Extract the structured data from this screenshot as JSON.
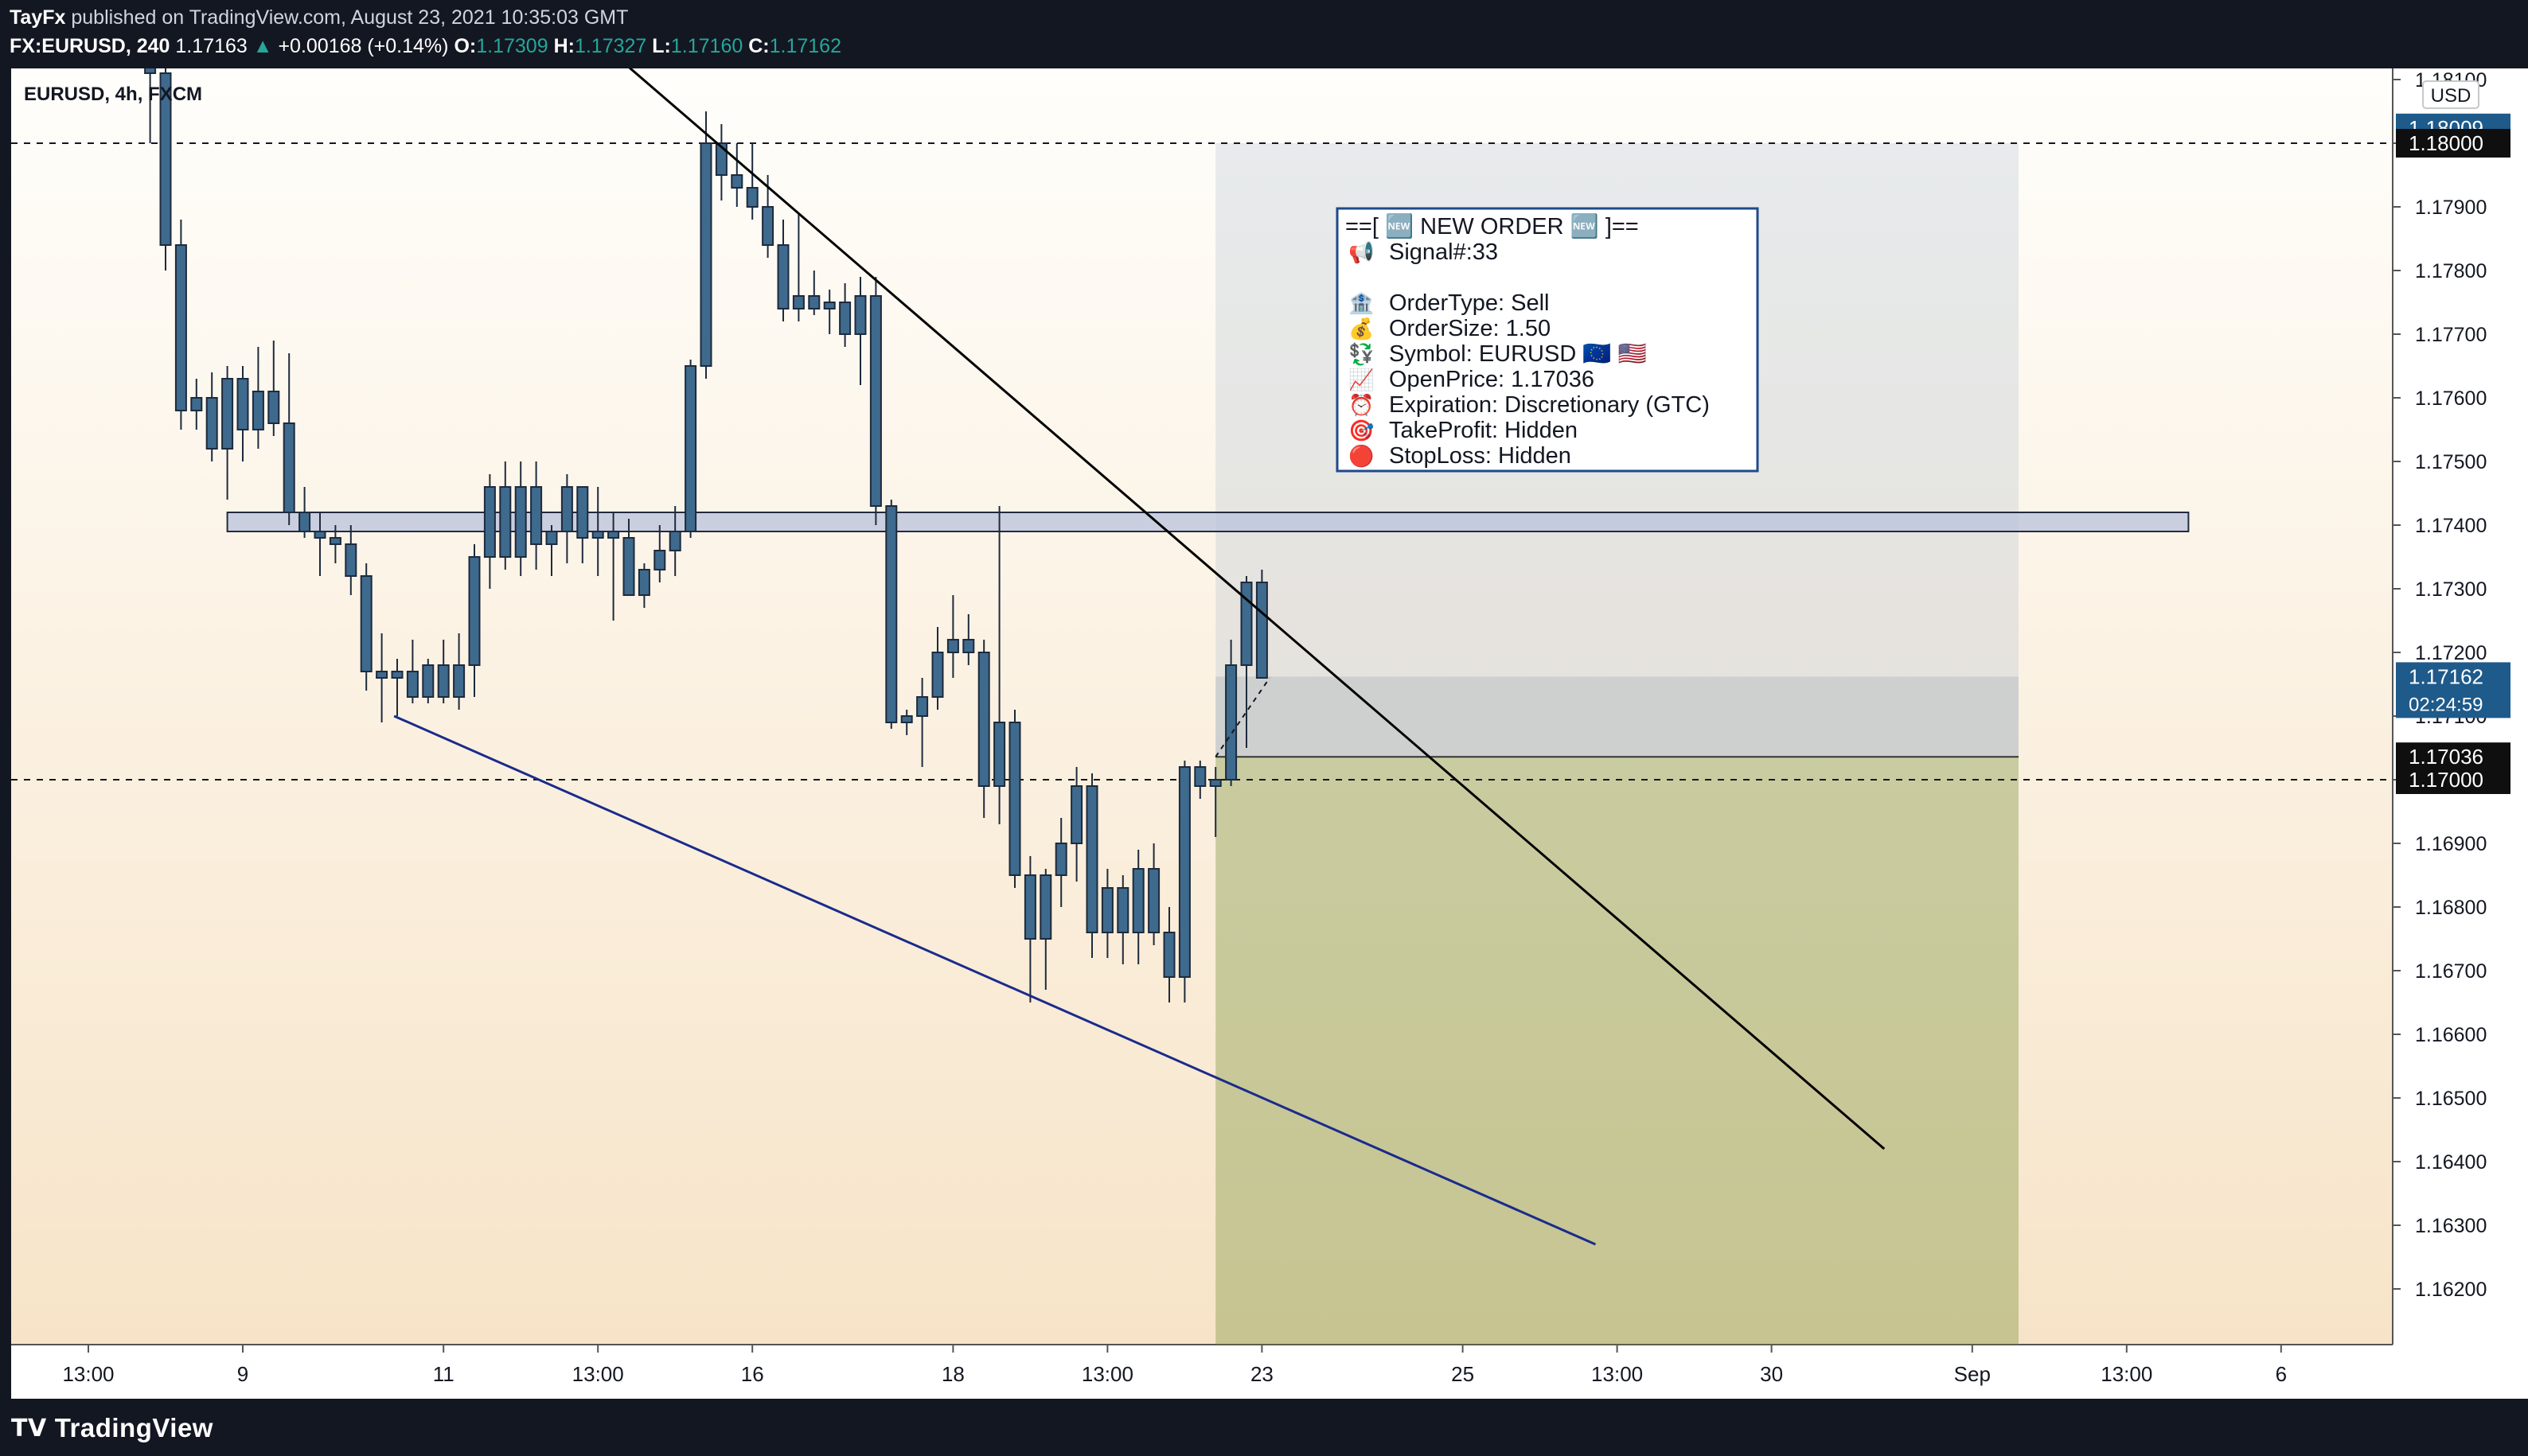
{
  "header": {
    "author": "TayFx",
    "published_text": "published on TradingView.com, August 23, 2021 10:35:03 GMT",
    "symbol_line": "FX:EURUSD, 240",
    "last": "1.17163",
    "arrow": "▲",
    "change": "+0.00168 (+0.14%)",
    "open_label": "O:",
    "open": "1.17309",
    "high_label": "H:",
    "high": "1.17327",
    "low_label": "L:",
    "low": "1.17160",
    "close_label": "C:",
    "close": "1.17162"
  },
  "chart_legend": "EURUSD, 4h, FXCM",
  "footer": {
    "brand": "TradingView"
  },
  "order_box": {
    "title": "==[ 🆕 NEW ORDER 🆕 ]==",
    "lines": [
      {
        "icon": "📢",
        "text": "Signal#:33"
      },
      {
        "icon": "",
        "text": ""
      },
      {
        "icon": "🏦",
        "text": "OrderType: Sell"
      },
      {
        "icon": "💰",
        "text": "OrderSize: 1.50"
      },
      {
        "icon": "💱",
        "text": "Symbol: EURUSD 🇪🇺 🇺🇸"
      },
      {
        "icon": "📈",
        "text": "OpenPrice: 1.17036"
      },
      {
        "icon": "⏰",
        "text": "Expiration: Discretionary (GTC)"
      },
      {
        "icon": "🎯",
        "text": "TakeProfit: Hidden"
      },
      {
        "icon": "🔴",
        "text": "StopLoss: Hidden"
      }
    ]
  },
  "chart_data": {
    "type": "candlestick",
    "currency_label": "USD",
    "y_ticks": [
      "1.18100",
      "1.18000",
      "1.17900",
      "1.17800",
      "1.17700",
      "1.17600",
      "1.17500",
      "1.17400",
      "1.17300",
      "1.17200",
      "1.17100",
      "1.17000",
      "1.16900",
      "1.16800",
      "1.16700",
      "1.16600",
      "1.16500",
      "1.16400",
      "1.16300",
      "1.16200"
    ],
    "y_tick_values": [
      1.181,
      1.18,
      1.179,
      1.178,
      1.177,
      1.176,
      1.175,
      1.174,
      1.173,
      1.172,
      1.171,
      1.17,
      1.169,
      1.168,
      1.167,
      1.166,
      1.165,
      1.164,
      1.163,
      1.162
    ],
    "ylim": [
      1.1612,
      1.1813
    ],
    "x_range": [
      0,
      152
    ],
    "x_ticks": [
      {
        "label": "13:00",
        "x": 5
      },
      {
        "label": "9",
        "x": 15
      },
      {
        "label": "11",
        "x": 28
      },
      {
        "label": "13:00",
        "x": 38
      },
      {
        "label": "16",
        "x": 48
      },
      {
        "label": "18",
        "x": 61
      },
      {
        "label": "13:00",
        "x": 71
      },
      {
        "label": "23",
        "x": 81
      },
      {
        "label": "25",
        "x": 94
      },
      {
        "label": "13:00",
        "x": 104
      },
      {
        "label": "30",
        "x": 114
      },
      {
        "label": "Sep",
        "x": 127
      },
      {
        "label": "13:00",
        "x": 137
      },
      {
        "label": "6",
        "x": 147
      }
    ],
    "price_labels": [
      {
        "text": "1.18009",
        "value": 1.18009,
        "style": "blue"
      },
      {
        "text": "1.18000",
        "value": 1.18,
        "style": "black"
      },
      {
        "text": "1.17162",
        "sub": "02:24:59",
        "value": 1.17162,
        "style": "blue"
      },
      {
        "text": "1.17036",
        "value": 1.17036,
        "style": "black"
      },
      {
        "text": "1.17000",
        "value": 1.17,
        "style": "black"
      }
    ],
    "horizontal_lines": [
      {
        "value": 1.18,
        "style": "dashed"
      },
      {
        "value": 1.17,
        "style": "dashed"
      }
    ],
    "resistance_zone": {
      "x_start": 14,
      "x_end": 141,
      "y_top": 1.1742,
      "y_bottom": 1.1739
    },
    "trendlines": [
      {
        "name": "downtrend",
        "color": "#000000",
        "points": [
          [
            39.5,
            1.1813
          ],
          [
            121.3,
            1.1642
          ]
        ]
      },
      {
        "name": "lower",
        "color": "#1a2b8c",
        "points": [
          [
            24.8,
            1.171
          ],
          [
            102.6,
            1.1627
          ]
        ]
      }
    ],
    "position": {
      "type": "short",
      "x_start": 78,
      "x_end": 130,
      "entry": 1.17036,
      "stop": 1.18,
      "target": 1.1612,
      "current": 1.17162
    },
    "candles": [
      [
        9,
        1.1812,
        1.1813,
        1.18,
        1.1811
      ],
      [
        10,
        1.1811,
        1.1813,
        1.178,
        1.1784
      ],
      [
        11,
        1.1784,
        1.1788,
        1.1755,
        1.1758
      ],
      [
        12,
        1.1758,
        1.1763,
        1.1755,
        1.176
      ],
      [
        13,
        1.176,
        1.1764,
        1.175,
        1.1752
      ],
      [
        14,
        1.1752,
        1.1765,
        1.1744,
        1.1763
      ],
      [
        15,
        1.1763,
        1.1765,
        1.175,
        1.1755
      ],
      [
        16,
        1.1755,
        1.1768,
        1.1752,
        1.1761
      ],
      [
        17,
        1.1761,
        1.1769,
        1.1754,
        1.1756
      ],
      [
        18,
        1.1756,
        1.1767,
        1.174,
        1.1742
      ],
      [
        19,
        1.1742,
        1.1746,
        1.1738,
        1.1739
      ],
      [
        20,
        1.1739,
        1.1742,
        1.1732,
        1.1738
      ],
      [
        21,
        1.1738,
        1.174,
        1.1734,
        1.1737
      ],
      [
        22,
        1.1737,
        1.174,
        1.1729,
        1.1732
      ],
      [
        23,
        1.1732,
        1.1734,
        1.1714,
        1.1717
      ],
      [
        24,
        1.1717,
        1.1723,
        1.1709,
        1.1716
      ],
      [
        25,
        1.1716,
        1.1719,
        1.171,
        1.1717
      ],
      [
        26,
        1.1717,
        1.1722,
        1.1712,
        1.1713
      ],
      [
        27,
        1.1713,
        1.1719,
        1.1712,
        1.1718
      ],
      [
        28,
        1.1718,
        1.1722,
        1.1712,
        1.1713
      ],
      [
        29,
        1.1713,
        1.1723,
        1.1711,
        1.1718
      ],
      [
        30,
        1.1718,
        1.1737,
        1.1713,
        1.1735
      ],
      [
        31,
        1.1735,
        1.1748,
        1.173,
        1.1746
      ],
      [
        32,
        1.1746,
        1.175,
        1.1733,
        1.1735
      ],
      [
        33,
        1.1735,
        1.175,
        1.1732,
        1.1746
      ],
      [
        34,
        1.1746,
        1.175,
        1.1733,
        1.1737
      ],
      [
        35,
        1.1737,
        1.174,
        1.1732,
        1.1739
      ],
      [
        36,
        1.1739,
        1.1748,
        1.1734,
        1.1746
      ],
      [
        37,
        1.1746,
        1.1746,
        1.1734,
        1.1738
      ],
      [
        38,
        1.1738,
        1.1746,
        1.1732,
        1.1739
      ],
      [
        39,
        1.1739,
        1.1742,
        1.1725,
        1.1738
      ],
      [
        40,
        1.1738,
        1.1741,
        1.1729,
        1.1729
      ],
      [
        41,
        1.1729,
        1.1734,
        1.1727,
        1.1733
      ],
      [
        42,
        1.1733,
        1.174,
        1.1731,
        1.1736
      ],
      [
        43,
        1.1736,
        1.1743,
        1.1732,
        1.1739
      ],
      [
        44,
        1.1739,
        1.1766,
        1.1738,
        1.1765
      ],
      [
        45,
        1.1765,
        1.1805,
        1.1763,
        1.18
      ],
      [
        46,
        1.18,
        1.1803,
        1.1791,
        1.1795
      ],
      [
        47,
        1.1795,
        1.18,
        1.179,
        1.1793
      ],
      [
        48,
        1.1793,
        1.18,
        1.1788,
        1.179
      ],
      [
        49,
        1.179,
        1.1795,
        1.1782,
        1.1784
      ],
      [
        50,
        1.1784,
        1.1788,
        1.1772,
        1.1774
      ],
      [
        51,
        1.1774,
        1.1789,
        1.1772,
        1.1776
      ],
      [
        52,
        1.1776,
        1.178,
        1.1773,
        1.1774
      ],
      [
        53,
        1.1774,
        1.1777,
        1.177,
        1.1775
      ],
      [
        54,
        1.1775,
        1.1778,
        1.1768,
        1.177
      ],
      [
        55,
        1.177,
        1.1779,
        1.1762,
        1.1776
      ],
      [
        56,
        1.1776,
        1.1779,
        1.174,
        1.1743
      ],
      [
        57,
        1.1743,
        1.1744,
        1.1708,
        1.1709
      ],
      [
        58,
        1.1709,
        1.1711,
        1.1707,
        1.171
      ],
      [
        59,
        1.171,
        1.1716,
        1.1702,
        1.1713
      ],
      [
        60,
        1.1713,
        1.1724,
        1.1711,
        1.172
      ],
      [
        61,
        1.172,
        1.1729,
        1.1716,
        1.1722
      ],
      [
        62,
        1.1722,
        1.1726,
        1.1718,
        1.172
      ],
      [
        63,
        1.172,
        1.1722,
        1.1694,
        1.1699
      ],
      [
        64,
        1.1699,
        1.1743,
        1.1693,
        1.1709
      ],
      [
        65,
        1.1709,
        1.1711,
        1.1683,
        1.1685
      ],
      [
        66,
        1.1685,
        1.1688,
        1.1665,
        1.1675
      ],
      [
        67,
        1.1675,
        1.1686,
        1.1667,
        1.1685
      ],
      [
        68,
        1.1685,
        1.1694,
        1.168,
        1.169
      ],
      [
        69,
        1.169,
        1.1702,
        1.1684,
        1.1699
      ],
      [
        70,
        1.1699,
        1.1701,
        1.1672,
        1.1676
      ],
      [
        71,
        1.1676,
        1.1686,
        1.1672,
        1.1683
      ],
      [
        72,
        1.1683,
        1.1685,
        1.1671,
        1.1676
      ],
      [
        73,
        1.1676,
        1.1689,
        1.1671,
        1.1686
      ],
      [
        74,
        1.1686,
        1.169,
        1.1674,
        1.1676
      ],
      [
        75,
        1.1676,
        1.168,
        1.1665,
        1.1669
      ],
      [
        76,
        1.1669,
        1.1703,
        1.1665,
        1.1702
      ],
      [
        77,
        1.1702,
        1.1703,
        1.1697,
        1.1699
      ],
      [
        78,
        1.1699,
        1.1702,
        1.1691,
        1.17
      ],
      [
        79,
        1.17,
        1.1722,
        1.1699,
        1.1718
      ],
      [
        80,
        1.1718,
        1.1732,
        1.1705,
        1.1731
      ],
      [
        81,
        1.1731,
        1.1733,
        1.1716,
        1.1716
      ]
    ]
  }
}
